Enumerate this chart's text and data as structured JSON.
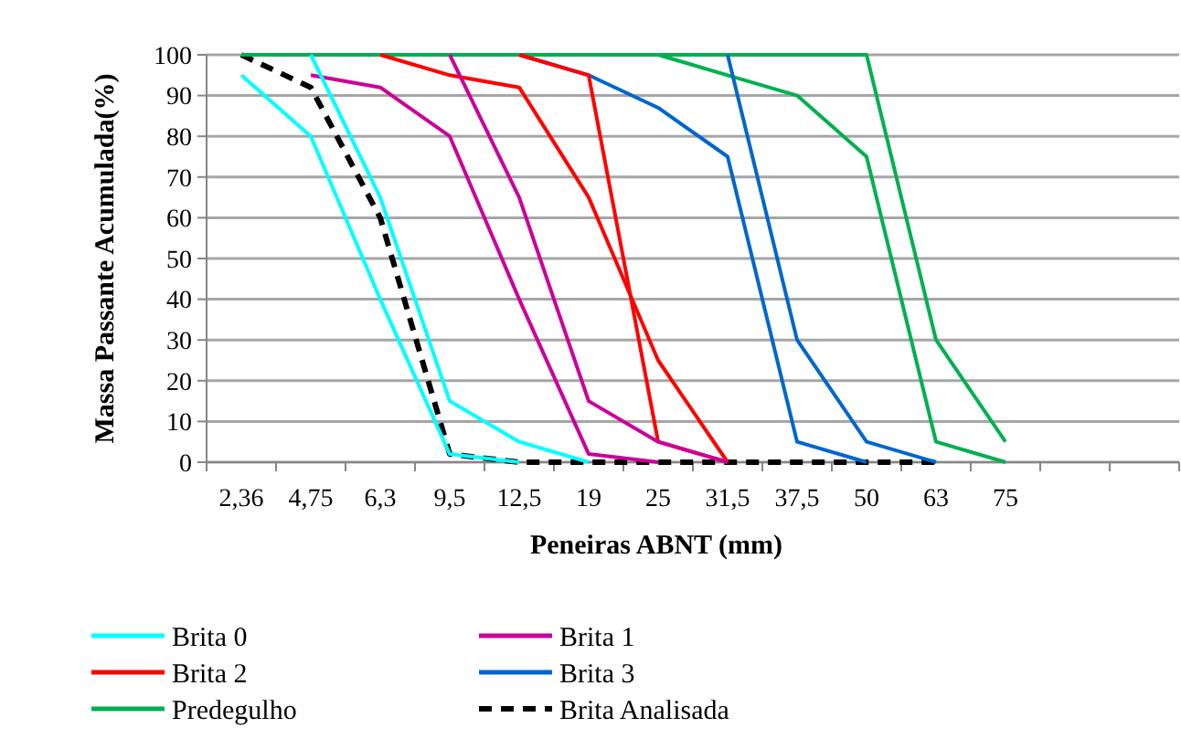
{
  "chart_data": {
    "type": "line",
    "xlabel": "Peneiras ABNT (mm)",
    "ylabel": "Massa Passante Acumulada(%)",
    "categories": [
      "2,36",
      "4,75",
      "6,3",
      "9,5",
      "12,5",
      "19",
      "25",
      "31,5",
      "37,5",
      "50",
      "63",
      "75",
      null,
      null
    ],
    "ylim": [
      0,
      100
    ],
    "yticks": [
      0,
      10,
      20,
      30,
      40,
      50,
      60,
      70,
      80,
      90,
      100
    ],
    "grid": "y",
    "legend": "bottom",
    "marker": "none",
    "series": [
      {
        "name": "Brita 0",
        "color": "#00ffff",
        "values": [
          95,
          80,
          40,
          2,
          0,
          null,
          null,
          null,
          null,
          null,
          null,
          null,
          null,
          null
        ]
      },
      {
        "color": "#00ffff",
        "values": [
          null,
          100,
          65,
          15,
          5,
          0,
          null,
          null,
          null,
          null,
          null,
          null,
          null,
          null
        ]
      },
      {
        "name": "Brita 1",
        "color": "#cc0099",
        "values": [
          null,
          95,
          92,
          80,
          40,
          2,
          0,
          null,
          null,
          null,
          null,
          null,
          null,
          null
        ]
      },
      {
        "color": "#cc0099",
        "values": [
          null,
          null,
          null,
          100,
          65,
          15,
          5,
          0,
          null,
          null,
          null,
          null,
          null,
          null
        ]
      },
      {
        "name": "Brita 2",
        "color": "#ff0000",
        "values": [
          null,
          null,
          100,
          95,
          92,
          65,
          25,
          0,
          null,
          null,
          null,
          null,
          null,
          null
        ]
      },
      {
        "color": "#ff0000",
        "values": [
          null,
          null,
          null,
          null,
          100,
          95,
          5,
          0,
          null,
          null,
          null,
          null,
          null,
          null
        ]
      },
      {
        "name": "Brita 3",
        "color": "#0066cc",
        "values": [
          null,
          null,
          null,
          null,
          100,
          95,
          87,
          75,
          5,
          0,
          null,
          null,
          null,
          null
        ]
      },
      {
        "color": "#0066cc",
        "values": [
          null,
          null,
          null,
          null,
          null,
          null,
          null,
          100,
          30,
          5,
          0,
          null,
          null,
          null
        ]
      },
      {
        "name": "Predegulho",
        "color": "#00b050",
        "values": [
          100,
          100,
          100,
          100,
          100,
          100,
          100,
          95,
          90,
          75,
          5,
          0,
          null,
          null
        ]
      },
      {
        "color": "#00b050",
        "values": [
          null,
          null,
          null,
          null,
          null,
          null,
          100,
          100,
          100,
          100,
          30,
          5,
          null,
          null
        ]
      },
      {
        "name": "Brita Analisada",
        "color": "#000000",
        "line_style": "dashed",
        "values": [
          100,
          92,
          60,
          2,
          0,
          0,
          0,
          0,
          0,
          0,
          0,
          null,
          null,
          null
        ]
      }
    ]
  }
}
